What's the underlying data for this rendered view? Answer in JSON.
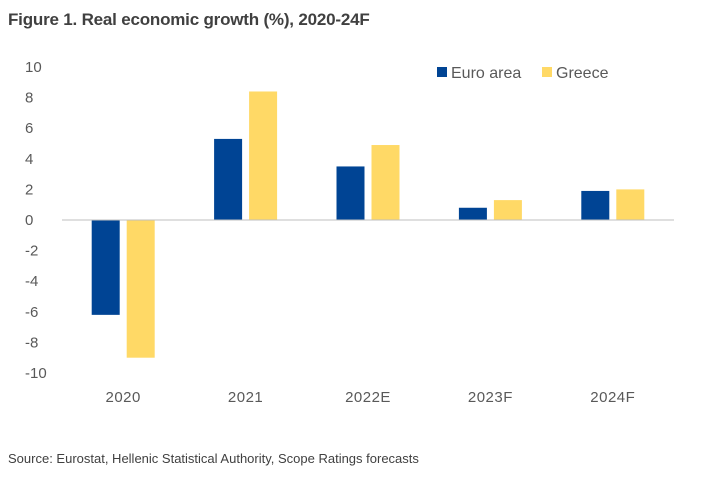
{
  "title": "Figure 1. Real economic growth (%), 2020-24F",
  "source": "Source: Eurostat, Hellenic Statistical Authority, Scope Ratings forecasts",
  "colors": {
    "euro_area": "#004494",
    "greece": "#FFD966",
    "axis": "#bfbfbf",
    "text": "#595959"
  },
  "chart_data": {
    "type": "bar",
    "title": "Figure 1. Real economic growth (%), 2020-24F",
    "xlabel": "",
    "ylabel": "",
    "categories": [
      "2020",
      "2021",
      "2022E",
      "2023F",
      "2024F"
    ],
    "series": [
      {
        "name": "Euro area",
        "values": [
          -6.2,
          5.3,
          3.5,
          0.8,
          1.9
        ]
      },
      {
        "name": "Greece",
        "values": [
          -9.0,
          8.4,
          4.9,
          1.3,
          2.0
        ]
      }
    ],
    "ylim": [
      -10,
      10
    ],
    "yticks": [
      10,
      8,
      6,
      4,
      2,
      0,
      -2,
      -4,
      -6,
      -8,
      -10
    ],
    "grid": false,
    "legend": "top-right"
  }
}
